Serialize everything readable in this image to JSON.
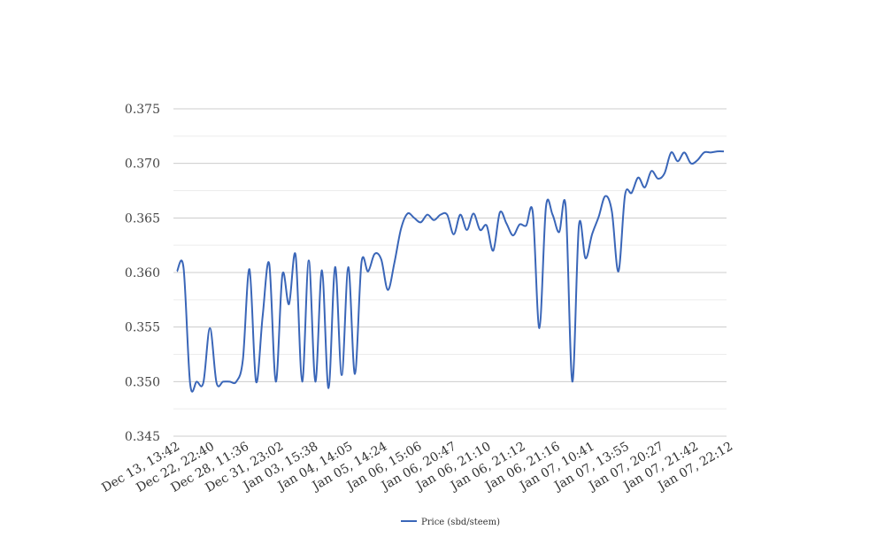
{
  "chart_data": {
    "type": "line",
    "title": "",
    "xlabel": "",
    "ylabel": "",
    "ylim": [
      0.345,
      0.375
    ],
    "y_ticks": [
      "0.345",
      "0.350",
      "0.355",
      "0.360",
      "0.365",
      "0.370",
      "0.375"
    ],
    "y_tick_values": [
      0.345,
      0.35,
      0.355,
      0.36,
      0.365,
      0.37,
      0.375
    ],
    "y_minor_values": [
      0.3475,
      0.3525,
      0.3575,
      0.3625,
      0.3675,
      0.3725
    ],
    "x_tick_labels": [
      "Dec 13, 13:42",
      "Dec 22, 22:40",
      "Dec 28, 11:36",
      "Dec 31, 23:02",
      "Jan 03, 15:38",
      "Jan 04, 14:05",
      "Jan 05, 14:24",
      "Jan 06, 15:06",
      "Jan 06, 20:47",
      "Jan 06, 21:10",
      "Jan 06, 21:12",
      "Jan 06, 21:16",
      "Jan 07, 10:41",
      "Jan 07, 13:55",
      "Jan 07, 20:27",
      "Jan 07, 21:42",
      "Jan 07, 22:12"
    ],
    "grid": true,
    "legend_position": "bottom",
    "series_color": "#3a66b8",
    "series": [
      {
        "name": "Price (sbd/steem)",
        "values": [
          0.3601,
          0.3604,
          0.3498,
          0.35,
          0.3499,
          0.3549,
          0.3499,
          0.35,
          0.35,
          0.35,
          0.352,
          0.3603,
          0.35,
          0.356,
          0.3608,
          0.35,
          0.3598,
          0.3571,
          0.3616,
          0.35,
          0.3611,
          0.35,
          0.3602,
          0.3494,
          0.3605,
          0.3506,
          0.3605,
          0.3507,
          0.3609,
          0.3601,
          0.3617,
          0.3612,
          0.3584,
          0.3609,
          0.364,
          0.3654,
          0.365,
          0.3646,
          0.3653,
          0.3648,
          0.3653,
          0.3653,
          0.3635,
          0.3653,
          0.3639,
          0.3654,
          0.3639,
          0.3643,
          0.362,
          0.3655,
          0.3645,
          0.3634,
          0.3644,
          0.3643,
          0.3655,
          0.3549,
          0.366,
          0.3653,
          0.3637,
          0.366,
          0.35,
          0.3643,
          0.3613,
          0.3635,
          0.3651,
          0.367,
          0.3656,
          0.3601,
          0.3671,
          0.3673,
          0.3687,
          0.3678,
          0.3693,
          0.3686,
          0.3691,
          0.371,
          0.3702,
          0.371,
          0.37,
          0.3703,
          0.371,
          0.371,
          0.3711,
          0.3711
        ]
      }
    ]
  }
}
